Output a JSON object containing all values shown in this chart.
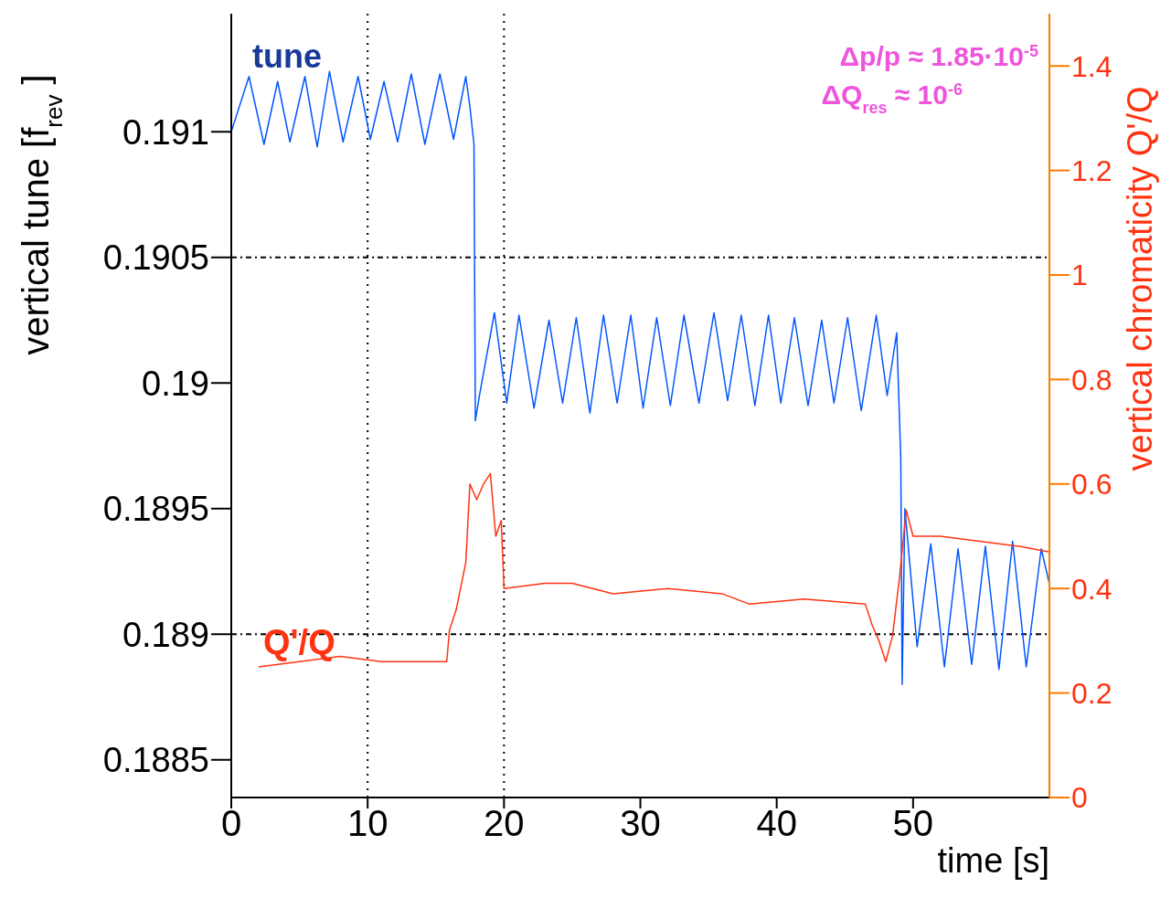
{
  "chart_data": {
    "type": "line",
    "xlabel": "time [s]",
    "ylabel": "vertical tune [f$_{rev}$]",
    "y2label": "vertical chromaticity Q'/Q",
    "annotations": [
      "tune",
      "Q'/Q",
      "Δp/p ≈ 1.85·10$^{-5}$",
      "ΔQ$_{res}$ ≈ 10$^{-6}$"
    ],
    "series": [
      {
        "color": "#0055ff",
        "x": [
          0,
          1.3,
          2.4,
          3.4,
          4.3,
          5.4,
          6.3,
          7.2,
          8.2,
          9.3,
          10.2,
          11.2,
          12.2,
          13.2,
          14.2,
          15.3,
          16.3,
          17.2,
          17.5,
          17.8,
          17.9,
          18.2,
          19.3,
          20.2,
          21.1,
          22.2,
          23.3,
          24.3,
          25.3,
          26.3,
          27.3,
          28.3,
          29.3,
          30.2,
          31.2,
          32.2,
          33.2,
          34.3,
          35.4,
          36.4,
          37.4,
          38.4,
          39.4,
          40.3,
          41.3,
          42.3,
          43.3,
          44.2,
          45.2,
          46.2,
          47.3,
          48.1,
          48.8,
          49.1,
          49.2,
          49.4,
          50.3,
          51.3,
          52.3,
          53.3,
          54.3,
          55.3,
          56.3,
          57.3,
          58.3,
          59.4,
          60
        ],
        "values": [
          0.191,
          0.19122,
          0.19095,
          0.1912,
          0.19096,
          0.19122,
          0.19094,
          0.19124,
          0.19096,
          0.19122,
          0.19097,
          0.1912,
          0.19096,
          0.19123,
          0.19095,
          0.19123,
          0.19097,
          0.19122,
          0.1911,
          0.19095,
          0.18985,
          0.18995,
          0.19028,
          0.18992,
          0.19027,
          0.1899,
          0.19025,
          0.18992,
          0.19026,
          0.18988,
          0.19027,
          0.18992,
          0.19027,
          0.1899,
          0.19026,
          0.18991,
          0.19027,
          0.18992,
          0.19028,
          0.18993,
          0.19027,
          0.18991,
          0.19027,
          0.18992,
          0.19026,
          0.18991,
          0.19025,
          0.18992,
          0.19026,
          0.18989,
          0.19027,
          0.18995,
          0.1902,
          0.1897,
          0.1888,
          0.1895,
          0.18895,
          0.18936,
          0.18887,
          0.18934,
          0.18888,
          0.18935,
          0.18886,
          0.18937,
          0.18887,
          0.18934,
          0.1892
        ]
      },
      {
        "color": "#ff3311",
        "axis": "y2",
        "x": [
          2,
          5,
          8,
          11,
          14,
          15.8,
          16,
          16.5,
          17.2,
          17.5,
          18,
          18.5,
          19,
          19.4,
          19.8,
          20,
          23,
          25,
          28,
          32,
          36,
          38,
          42,
          46.5,
          47,
          47.5,
          48,
          48.5,
          49,
          49.5,
          50,
          52,
          55,
          58,
          60
        ],
        "values": [
          0.25,
          0.26,
          0.27,
          0.26,
          0.26,
          0.26,
          0.32,
          0.36,
          0.45,
          0.6,
          0.57,
          0.6,
          0.62,
          0.5,
          0.53,
          0.4,
          0.41,
          0.41,
          0.39,
          0.4,
          0.39,
          0.37,
          0.38,
          0.37,
          0.33,
          0.3,
          0.26,
          0.31,
          0.42,
          0.55,
          0.5,
          0.5,
          0.49,
          0.48,
          0.47
        ]
      }
    ],
    "xlim": [
      0,
      60
    ],
    "xticks": [
      0,
      10,
      20,
      30,
      40,
      50
    ],
    "ylim": [
      0.18835,
      0.19147
    ],
    "yticks": [
      0.1885,
      0.189,
      0.1895,
      0.19,
      0.1905,
      0.191
    ],
    "y2lim": [
      0,
      1.5
    ],
    "y2ticks": [
      0,
      0.2,
      0.4,
      0.6,
      0.8,
      1,
      1.2,
      1.4
    ],
    "ref_lines": [
      {
        "axis": "x",
        "value": 10,
        "line_style": "dotted"
      },
      {
        "axis": "x",
        "value": 20,
        "line_style": "dotted"
      },
      {
        "axis": "y",
        "value": 0.1905,
        "line_style": "dashed"
      },
      {
        "axis": "y",
        "value": 0.189,
        "line_style": "dashed"
      }
    ],
    "marker": "none",
    "line_style": "solid"
  }
}
